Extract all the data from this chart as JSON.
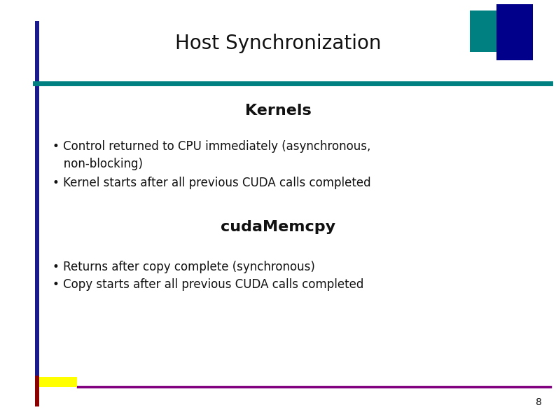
{
  "title": "Host Synchronization",
  "bg_color": "#ffffff",
  "left_bar_color": "#1a1a8c",
  "teal_line_color": "#008080",
  "section1_heading": "Kernels",
  "section2_heading": "cudaMemcpy",
  "bottom_line_color": "#800080",
  "page_number": "8",
  "corner_rect_teal_color": "#008080",
  "corner_rect_navy_color": "#00008b",
  "bottom_left_red_color": "#8b0000",
  "bottom_left_yellow_color": "#ffff00",
  "title_fontsize": 20,
  "heading_fontsize": 16,
  "bullet_fontsize": 12,
  "page_num_fontsize": 10
}
